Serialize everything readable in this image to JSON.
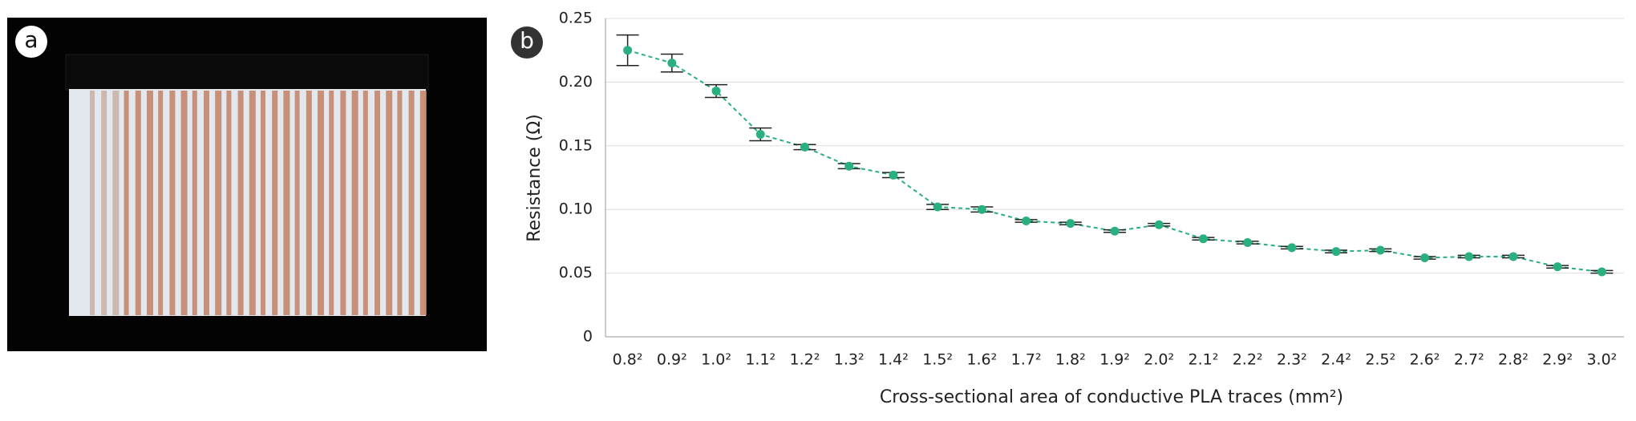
{
  "labels": [
    "a",
    "b"
  ],
  "chart_data": {
    "type": "errorbar",
    "xlabel": "Cross-sectional area of conductive PLA traces (mm²)",
    "ylabel": "Resistance (Ω)",
    "categories": [
      "0.8²",
      "0.9²",
      "1.0²",
      "1.1²",
      "1.2²",
      "1.3²",
      "1.4²",
      "1.5²",
      "1.6²",
      "1.7²",
      "1.8²",
      "1.9²",
      "2.0²",
      "2.1²",
      "2.2²",
      "2.3²",
      "2.4²",
      "2.5²",
      "2.6²",
      "2.7²",
      "2.8²",
      "2.9²",
      "3.0²"
    ],
    "series": [
      {
        "color": "#2ab07f",
        "values": [
          0.225,
          0.215,
          0.193,
          0.159,
          0.149,
          0.134,
          0.127,
          0.102,
          0.1,
          0.091,
          0.089,
          0.083,
          0.088,
          0.077,
          0.074,
          0.07,
          0.067,
          0.068,
          0.062,
          0.063,
          0.063,
          0.055,
          0.051
        ],
        "errors": [
          0.012,
          0.007,
          0.005,
          0.005,
          0.002,
          0.002,
          0.002,
          0.002,
          0.002,
          0.001,
          0.001,
          0.001,
          0.001,
          0.001,
          0.001,
          0.001,
          0.001,
          0.001,
          0.001,
          0.001,
          0.001,
          0.001,
          0.001
        ]
      }
    ],
    "ylim": [
      0,
      0.25
    ],
    "yticks": [
      0,
      0.05,
      {
        "value": 0.1,
        "label": "0.10"
      },
      0.15,
      {
        "value": 0.2,
        "label": "0.20"
      },
      0.25
    ],
    "grid": true
  }
}
